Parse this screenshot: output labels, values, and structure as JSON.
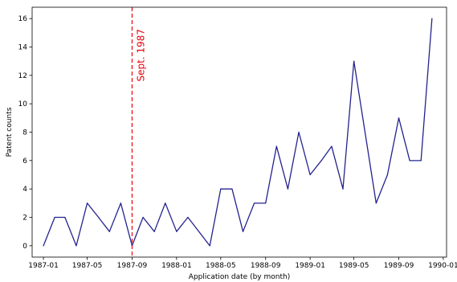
{
  "chart_data": {
    "type": "line",
    "xlabel": "Application date (by month)",
    "ylabel": "Patent counts",
    "x_range": [
      "1986-12-01",
      "1990-01-10"
    ],
    "ylim": [
      -0.8,
      16.8
    ],
    "x_ticks": [
      {
        "date": "1987-01-01",
        "label": "1987-01"
      },
      {
        "date": "1987-05-01",
        "label": "1987-05"
      },
      {
        "date": "1987-09-01",
        "label": "1987-09"
      },
      {
        "date": "1988-01-01",
        "label": "1988-01"
      },
      {
        "date": "1988-05-01",
        "label": "1988-05"
      },
      {
        "date": "1988-09-01",
        "label": "1988-09"
      },
      {
        "date": "1989-01-01",
        "label": "1989-01"
      },
      {
        "date": "1989-05-01",
        "label": "1989-05"
      },
      {
        "date": "1989-09-01",
        "label": "1989-09"
      },
      {
        "date": "1990-01-01",
        "label": "1990-01"
      }
    ],
    "y_ticks": [
      0,
      2,
      4,
      6,
      8,
      10,
      12,
      14,
      16
    ],
    "grid": false,
    "series": [
      {
        "color": "#23238e",
        "points": [
          {
            "x": "1987-01-01",
            "y": 0
          },
          {
            "x": "1987-02-01",
            "y": 2
          },
          {
            "x": "1987-03-01",
            "y": 2
          },
          {
            "x": "1987-04-01",
            "y": 0
          },
          {
            "x": "1987-05-01",
            "y": 3
          },
          {
            "x": "1987-06-01",
            "y": 2
          },
          {
            "x": "1987-07-01",
            "y": 1
          },
          {
            "x": "1987-08-01",
            "y": 3
          },
          {
            "x": "1987-09-01",
            "y": 0
          },
          {
            "x": "1987-10-01",
            "y": 2
          },
          {
            "x": "1987-11-01",
            "y": 1
          },
          {
            "x": "1987-12-01",
            "y": 3
          },
          {
            "x": "1988-01-01",
            "y": 1
          },
          {
            "x": "1988-02-01",
            "y": 2
          },
          {
            "x": "1988-04-01",
            "y": 0
          },
          {
            "x": "1988-05-01",
            "y": 4
          },
          {
            "x": "1988-06-01",
            "y": 4
          },
          {
            "x": "1988-07-01",
            "y": 1
          },
          {
            "x": "1988-08-01",
            "y": 3
          },
          {
            "x": "1988-09-01",
            "y": 3
          },
          {
            "x": "1988-10-01",
            "y": 7
          },
          {
            "x": "1988-11-01",
            "y": 4
          },
          {
            "x": "1988-12-01",
            "y": 8
          },
          {
            "x": "1989-01-01",
            "y": 5
          },
          {
            "x": "1989-02-01",
            "y": 6
          },
          {
            "x": "1989-03-01",
            "y": 7
          },
          {
            "x": "1989-04-01",
            "y": 4
          },
          {
            "x": "1989-05-01",
            "y": 13
          },
          {
            "x": "1989-07-01",
            "y": 3
          },
          {
            "x": "1989-08-01",
            "y": 5
          },
          {
            "x": "1989-09-01",
            "y": 9
          },
          {
            "x": "1989-10-01",
            "y": 6
          },
          {
            "x": "1989-11-01",
            "y": 6
          },
          {
            "x": "1989-12-01",
            "y": 16
          }
        ]
      }
    ],
    "annotations": [
      {
        "type": "vline",
        "x": "1987-09-01",
        "color": "#e8000b",
        "style": "dashed",
        "text": "Sept. 1987"
      }
    ]
  }
}
